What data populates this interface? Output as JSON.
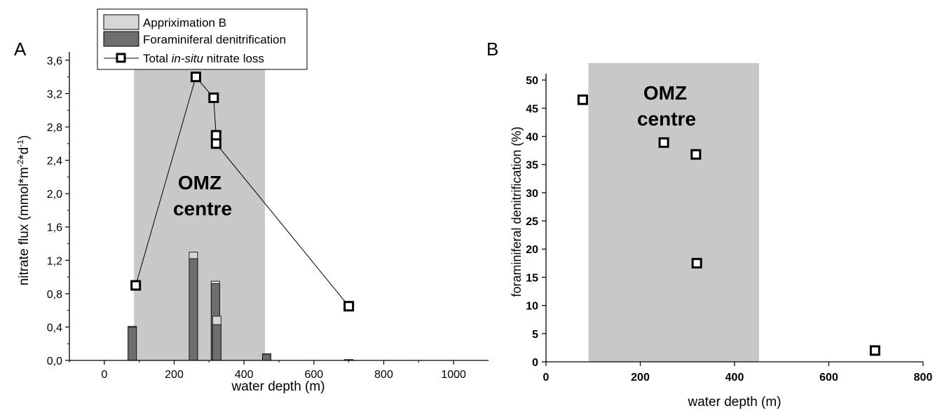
{
  "chart_data": [
    {
      "panel": "A",
      "type": "bar",
      "xlabel": "water depth (m)",
      "ylabel_parts": [
        "nitrate flux (mmol*m",
        "-2",
        "*d",
        "-1",
        ")"
      ],
      "xlim": [
        -100,
        1100
      ],
      "ylim": [
        0,
        3.7
      ],
      "xticks": [
        0,
        200,
        400,
        600,
        800,
        1000
      ],
      "xtick_labels": [
        "0",
        "200",
        "400",
        "600",
        "800",
        "1000"
      ],
      "yticks": [
        0,
        0.4,
        0.8,
        1.2,
        1.6,
        2.0,
        2.4,
        2.8,
        3.2,
        3.6
      ],
      "ytick_labels": [
        "0,0",
        "0,4",
        "0,8",
        "1,2",
        "1,6",
        "2,0",
        "2,4",
        "2,8",
        "3,2",
        "3,6"
      ],
      "omz_band": {
        "x_from": 85,
        "x_to": 460,
        "label_line1": "OMZ",
        "label_line2": "centre"
      },
      "legend": {
        "placement": "top",
        "entries": [
          {
            "key": "approx",
            "label": "Appriximation B"
          },
          {
            "key": "foram",
            "label": "Foraminiferal denitrification"
          },
          {
            "key": "total",
            "label_parts": [
              "Total ",
              "in-situ",
              " nitrate loss"
            ]
          }
        ]
      },
      "bars": [
        {
          "x": 80,
          "foram": 0.4,
          "approx": 0.41
        },
        {
          "x": 255,
          "foram": 1.22,
          "approx": 1.3
        },
        {
          "x": 318,
          "foram": 0.92,
          "approx": 0.95
        },
        {
          "x": 322,
          "foram": 0.43,
          "approx": 0.53
        },
        {
          "x": 465,
          "foram": 0.07,
          "approx": 0.08
        },
        {
          "x": 700,
          "foram": 0.01,
          "approx": 0.01
        }
      ],
      "total_series": {
        "name": "Total in-situ nitrate loss",
        "points": [
          {
            "x": 90,
            "y": 0.9
          },
          {
            "x": 262,
            "y": 3.4
          },
          {
            "x": 313,
            "y": 3.15
          },
          {
            "x": 320,
            "y": 2.7
          },
          {
            "x": 320,
            "y": 2.6
          },
          {
            "x": 700,
            "y": 0.65
          }
        ]
      },
      "colors": {
        "band": "#c8c8c8",
        "foram": "#6e6e6e",
        "approx": "#d6d6d6",
        "marker": "#000000"
      }
    },
    {
      "panel": "B",
      "type": "scatter",
      "xlabel": "water depth (m)",
      "ylabel": "foraminiferal denitrification (%)",
      "xlim": [
        0,
        800
      ],
      "ylim": [
        0,
        53
      ],
      "xticks": [
        0,
        200,
        400,
        600,
        800
      ],
      "xtick_labels": [
        "0",
        "200",
        "400",
        "600",
        "800"
      ],
      "yticks": [
        0,
        5,
        10,
        15,
        20,
        25,
        30,
        35,
        40,
        45,
        50
      ],
      "ytick_labels": [
        "0",
        "5",
        "10",
        "15",
        "20",
        "25",
        "30",
        "35",
        "40",
        "45",
        "50"
      ],
      "omz_band": {
        "x_from": 90,
        "x_to": 452,
        "label_line1": "OMZ",
        "label_line2": "centre"
      },
      "points": [
        {
          "x": 78,
          "y": 46.5
        },
        {
          "x": 250,
          "y": 38.9
        },
        {
          "x": 318,
          "y": 36.8
        },
        {
          "x": 320,
          "y": 17.5
        },
        {
          "x": 698,
          "y": 2.0
        }
      ],
      "colors": {
        "band": "#c8c8c8",
        "marker": "#000000"
      }
    }
  ]
}
